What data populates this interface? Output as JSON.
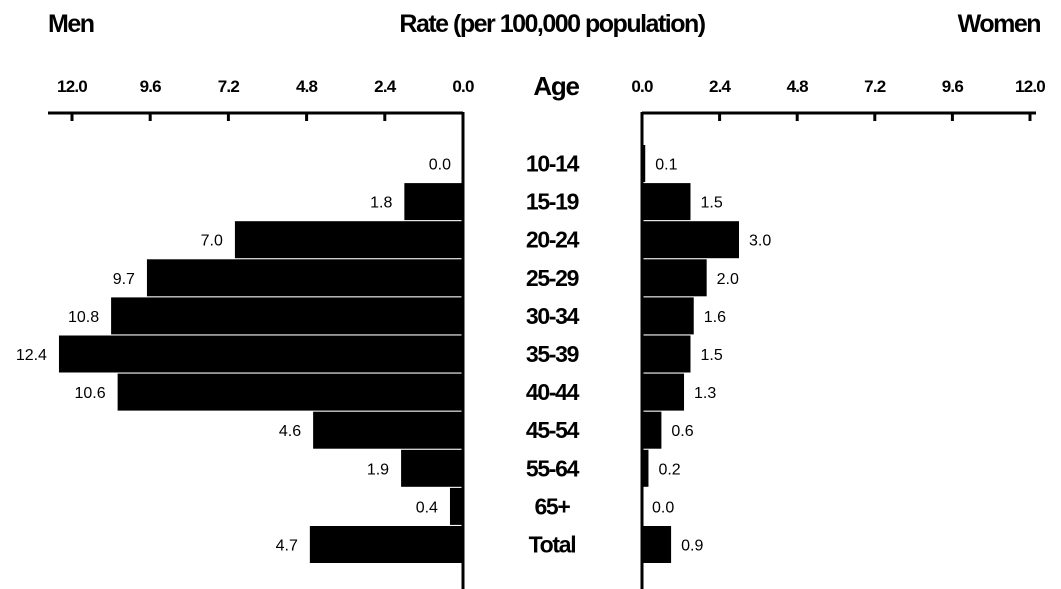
{
  "chart_data": {
    "type": "bar",
    "title": "Rate (per 100,000 population)",
    "category_header": "Age",
    "categories": [
      "10-14",
      "15-19",
      "20-24",
      "25-29",
      "30-34",
      "35-39",
      "40-44",
      "45-54",
      "55-64",
      "65+",
      "Total"
    ],
    "series": [
      {
        "name": "Men",
        "values": [
          0.0,
          1.8,
          7.0,
          9.7,
          10.8,
          12.4,
          10.6,
          4.6,
          1.9,
          0.4,
          4.7
        ],
        "labels": [
          "0.0",
          "1.8",
          "7.0",
          "9.7",
          "10.8",
          "12.4",
          "10.6",
          "4.6",
          "1.9",
          "0.4",
          "4.7"
        ]
      },
      {
        "name": "Women",
        "values": [
          0.1,
          1.5,
          3.0,
          2.0,
          1.6,
          1.5,
          1.3,
          0.6,
          0.2,
          0.0,
          0.9
        ],
        "labels": [
          "0.1",
          "1.5",
          "3.0",
          "2.0",
          "1.6",
          "1.5",
          "1.3",
          "0.6",
          "0.2",
          "0.0",
          "0.9"
        ]
      }
    ],
    "axis": {
      "range": [
        0,
        12.0
      ],
      "ticks": [
        0,
        2.4,
        4.8,
        7.2,
        9.6,
        12.0
      ],
      "tick_labels": [
        "0.0",
        "2.4",
        "4.8",
        "7.2",
        "9.6",
        "12.0"
      ],
      "men_direction": "leftward",
      "women_direction": "rightward"
    },
    "bar_color": "#000000",
    "grid": false,
    "legend": "none"
  }
}
